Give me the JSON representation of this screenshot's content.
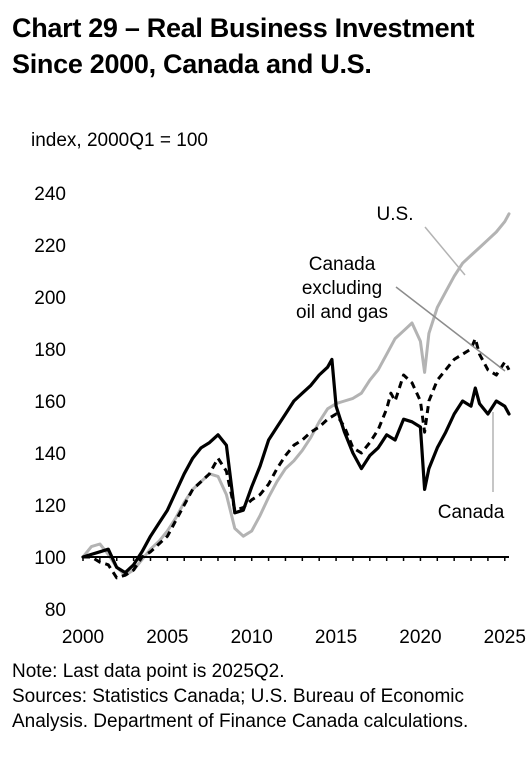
{
  "chart_data": {
    "type": "line",
    "title": "Chart 29 – Real Business Investment Since 2000, Canada and U.S.",
    "title_lines": [
      "Chart 29 – Real Business Investment",
      "Since 2000, Canada and U.S."
    ],
    "units_label": "index, 2000Q1 = 100",
    "ylim": [
      80,
      240
    ],
    "y_ticks": [
      "80",
      "100",
      "120",
      "140",
      "160",
      "180",
      "200",
      "220",
      "240"
    ],
    "xlim": [
      2000.0,
      2025.25
    ],
    "x_ticks": [
      "2000",
      "2005",
      "2010",
      "2015",
      "2020",
      "2025"
    ],
    "grid": false,
    "series": [
      {
        "name": "U.S.",
        "color": "#b3b3b3",
        "style": "solid",
        "x": [
          2000.0,
          2000.5,
          2001.0,
          2001.5,
          2002.0,
          2002.5,
          2003.0,
          2003.5,
          2004.0,
          2004.5,
          2005.0,
          2005.5,
          2006.0,
          2006.5,
          2007.0,
          2007.5,
          2008.0,
          2008.5,
          2009.0,
          2009.5,
          2010.0,
          2010.5,
          2011.0,
          2011.5,
          2012.0,
          2012.5,
          2013.0,
          2013.5,
          2014.0,
          2014.5,
          2015.0,
          2015.5,
          2016.0,
          2016.5,
          2017.0,
          2017.5,
          2018.0,
          2018.5,
          2019.0,
          2019.5,
          2020.0,
          2020.25,
          2020.5,
          2021.0,
          2021.5,
          2022.0,
          2022.5,
          2023.0,
          2023.5,
          2024.0,
          2024.5,
          2025.0,
          2025.25
        ],
        "values": [
          100,
          104,
          105,
          101,
          96,
          93,
          95,
          99,
          103,
          106,
          110,
          115,
          121,
          126,
          129,
          132,
          131,
          124,
          111,
          108,
          110,
          116,
          123,
          129,
          134,
          137,
          141,
          146,
          152,
          157,
          159,
          160,
          161,
          163,
          168,
          172,
          178,
          184,
          187,
          190,
          183,
          171,
          186,
          196,
          202,
          208,
          213,
          216,
          219,
          222,
          225,
          229,
          232
        ]
      },
      {
        "name": "Canada excluding oil and gas",
        "color": "#000000",
        "style": "dashed",
        "x": [
          2000.0,
          2000.5,
          2001.0,
          2001.5,
          2002.0,
          2002.5,
          2003.0,
          2003.5,
          2004.0,
          2004.5,
          2005.0,
          2005.5,
          2006.0,
          2006.5,
          2007.0,
          2007.5,
          2008.0,
          2008.5,
          2009.0,
          2009.5,
          2010.0,
          2010.5,
          2011.0,
          2011.5,
          2012.0,
          2012.5,
          2013.0,
          2013.5,
          2014.0,
          2014.5,
          2015.0,
          2015.5,
          2016.0,
          2016.5,
          2017.0,
          2017.5,
          2018.0,
          2018.25,
          2018.5,
          2019.0,
          2019.5,
          2020.0,
          2020.25,
          2020.5,
          2021.0,
          2021.5,
          2022.0,
          2022.5,
          2023.0,
          2023.25,
          2023.5,
          2024.0,
          2024.5,
          2025.0,
          2025.25
        ],
        "values": [
          100,
          100,
          98,
          97,
          92,
          93,
          95,
          100,
          102,
          105,
          108,
          114,
          120,
          126,
          129,
          132,
          138,
          133,
          118,
          119,
          122,
          124,
          128,
          134,
          139,
          143,
          145,
          148,
          150,
          153,
          155,
          150,
          142,
          140,
          144,
          149,
          157,
          163,
          160,
          170,
          167,
          160,
          148,
          160,
          168,
          172,
          176,
          178,
          180,
          184,
          178,
          172,
          170,
          175,
          172
        ]
      },
      {
        "name": "Canada",
        "color": "#000000",
        "style": "solid",
        "x": [
          2000.0,
          2000.5,
          2001.0,
          2001.5,
          2002.0,
          2002.5,
          2003.0,
          2003.5,
          2004.0,
          2004.5,
          2005.0,
          2005.5,
          2006.0,
          2006.5,
          2007.0,
          2007.5,
          2008.0,
          2008.5,
          2009.0,
          2009.5,
          2010.0,
          2010.5,
          2011.0,
          2011.5,
          2012.0,
          2012.5,
          2013.0,
          2013.5,
          2014.0,
          2014.5,
          2014.75,
          2015.0,
          2015.5,
          2016.0,
          2016.5,
          2017.0,
          2017.5,
          2018.0,
          2018.5,
          2019.0,
          2019.5,
          2020.0,
          2020.25,
          2020.5,
          2021.0,
          2021.5,
          2022.0,
          2022.5,
          2023.0,
          2023.25,
          2023.5,
          2024.0,
          2024.5,
          2025.0,
          2025.25
        ],
        "values": [
          100,
          101,
          102,
          103,
          96,
          94,
          97,
          102,
          108,
          113,
          118,
          125,
          132,
          138,
          142,
          144,
          147,
          143,
          117,
          118,
          127,
          135,
          145,
          150,
          155,
          160,
          163,
          166,
          170,
          173,
          176,
          158,
          148,
          140,
          134,
          139,
          142,
          147,
          145,
          153,
          152,
          150,
          126,
          134,
          142,
          148,
          155,
          160,
          158,
          165,
          159,
          155,
          160,
          158,
          155
        ]
      }
    ],
    "annotations": [
      {
        "lines": [
          "U.S."
        ]
      },
      {
        "lines": [
          "Canada",
          "excluding",
          "oil and gas"
        ]
      },
      {
        "lines": [
          "Canada"
        ]
      }
    ]
  },
  "notes": {
    "line1": "Note: Last data point is 2025Q2.",
    "line2": "Sources: Statistics Canada; U.S. Bureau of Economic",
    "line3": "Analysis. Department of Finance Canada calculations."
  }
}
